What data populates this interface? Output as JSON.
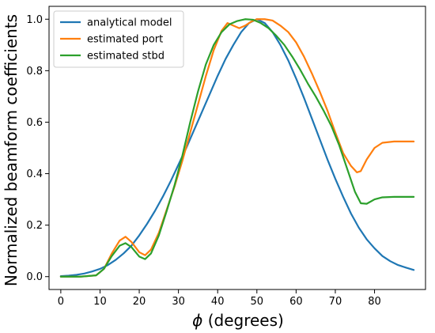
{
  "chart_data": {
    "type": "line",
    "xlabel_symbol": "ϕ",
    "xlabel_suffix": " (degrees)",
    "ylabel": "Normalized beamform coefficients",
    "xlim": [
      -3,
      93
    ],
    "ylim": [
      -0.05,
      1.05
    ],
    "x_ticks": [
      0,
      10,
      20,
      30,
      40,
      50,
      60,
      70,
      80
    ],
    "y_ticks": [
      0.0,
      0.2,
      0.4,
      0.6,
      0.8,
      1.0
    ],
    "y_tick_labels": [
      "0.0",
      "0.2",
      "0.4",
      "0.6",
      "0.8",
      "1.0"
    ],
    "grid": false,
    "legend_position": "top-left",
    "series": [
      {
        "name": "analytical model",
        "color": "#1f77b4",
        "x": [
          0,
          2,
          4,
          6,
          8,
          10,
          12,
          14,
          16,
          18,
          20,
          22,
          24,
          26,
          28,
          30,
          32,
          34,
          36,
          38,
          40,
          42,
          44,
          46,
          48,
          50,
          52,
          54,
          56,
          58,
          60,
          62,
          64,
          66,
          68,
          70,
          72,
          74,
          76,
          78,
          80,
          82,
          84,
          86,
          88,
          90
        ],
        "y": [
          0.002,
          0.004,
          0.007,
          0.012,
          0.02,
          0.03,
          0.045,
          0.065,
          0.09,
          0.12,
          0.16,
          0.205,
          0.255,
          0.31,
          0.37,
          0.435,
          0.5,
          0.57,
          0.64,
          0.71,
          0.78,
          0.845,
          0.9,
          0.95,
          0.985,
          1.0,
          0.985,
          0.95,
          0.9,
          0.84,
          0.77,
          0.695,
          0.615,
          0.535,
          0.455,
          0.38,
          0.31,
          0.245,
          0.19,
          0.145,
          0.11,
          0.08,
          0.06,
          0.045,
          0.035,
          0.026
        ]
      },
      {
        "name": "estimated port",
        "color": "#ff7f0e",
        "x": [
          0,
          5,
          9,
          11,
          13,
          15,
          16.5,
          18,
          20,
          21.5,
          23,
          25,
          27,
          29,
          31,
          33,
          35,
          37,
          39,
          41,
          42.5,
          44,
          45.5,
          47,
          48.5,
          50,
          52,
          54,
          56,
          58,
          60,
          62,
          64,
          66,
          68,
          70,
          72,
          74,
          75.5,
          76.5,
          78,
          80,
          82,
          85,
          88,
          90
        ],
        "y": [
          0.0,
          0.0,
          0.005,
          0.03,
          0.09,
          0.14,
          0.155,
          0.135,
          0.095,
          0.083,
          0.105,
          0.17,
          0.26,
          0.35,
          0.45,
          0.56,
          0.67,
          0.78,
          0.88,
          0.955,
          0.985,
          0.975,
          0.965,
          0.975,
          0.99,
          1.0,
          1.0,
          0.995,
          0.975,
          0.95,
          0.91,
          0.855,
          0.79,
          0.72,
          0.645,
          0.56,
          0.48,
          0.43,
          0.405,
          0.41,
          0.455,
          0.5,
          0.52,
          0.525,
          0.525,
          0.525
        ]
      },
      {
        "name": "estimated stbd",
        "color": "#2ca02c",
        "x": [
          0,
          5,
          9,
          11,
          13,
          15,
          16.5,
          18,
          20,
          21.5,
          23,
          25,
          27,
          29,
          31,
          33,
          35,
          37,
          39,
          41,
          43,
          45,
          47,
          49,
          51,
          53,
          55,
          57,
          59,
          61,
          63,
          65,
          67,
          69,
          71,
          73,
          75,
          76.5,
          78,
          80,
          82,
          85,
          88,
          90
        ],
        "y": [
          0.0,
          0.0,
          0.005,
          0.03,
          0.08,
          0.12,
          0.13,
          0.115,
          0.078,
          0.068,
          0.09,
          0.16,
          0.255,
          0.355,
          0.47,
          0.6,
          0.72,
          0.825,
          0.9,
          0.95,
          0.98,
          0.993,
          1.0,
          0.998,
          0.985,
          0.965,
          0.935,
          0.9,
          0.855,
          0.805,
          0.75,
          0.7,
          0.645,
          0.585,
          0.51,
          0.42,
          0.33,
          0.285,
          0.283,
          0.3,
          0.308,
          0.31,
          0.31,
          0.31
        ]
      }
    ]
  }
}
